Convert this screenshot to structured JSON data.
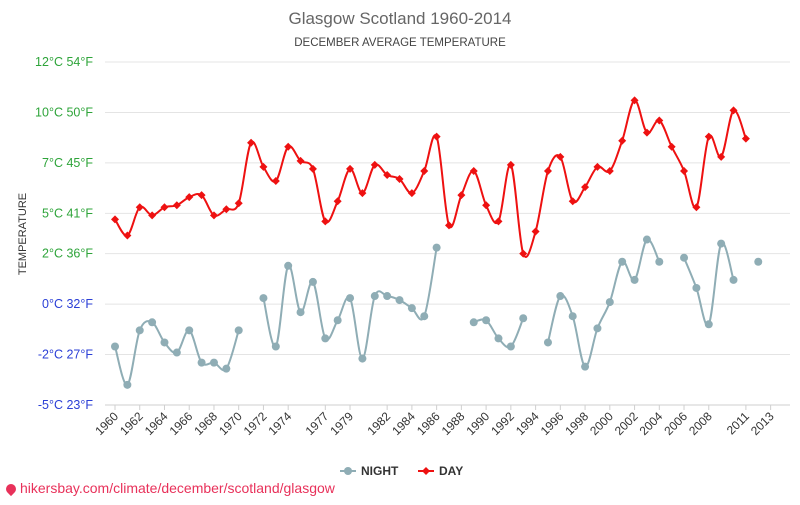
{
  "chart_data": {
    "type": "line",
    "title": "Glasgow Scotland 1960-2014",
    "subtitle": "DECEMBER AVERAGE TEMPERATURE",
    "ylabel": "TEMPERATURE",
    "xlabel": "",
    "ylim": [
      -5,
      12
    ],
    "yticks": [
      {
        "value": 12,
        "label": "12°C 54°F",
        "color": "#2ea43a"
      },
      {
        "value": 9.5,
        "label": "10°C 50°F",
        "color": "#2ea43a"
      },
      {
        "value": 7,
        "label": "7°C 45°F",
        "color": "#2ea43a"
      },
      {
        "value": 4.5,
        "label": "5°C 41°F",
        "color": "#2ea43a"
      },
      {
        "value": 2.5,
        "label": "2°C 36°F",
        "color": "#2ea43a"
      },
      {
        "value": 0,
        "label": "0°C 32°F",
        "color": "#2b3fd6"
      },
      {
        "value": -2.5,
        "label": "-2°C 27°F",
        "color": "#2b3fd6"
      },
      {
        "value": -5,
        "label": "-5°C 23°F",
        "color": "#2b3fd6"
      }
    ],
    "x": [
      1960,
      1961,
      1962,
      1963,
      1964,
      1965,
      1966,
      1967,
      1968,
      1969,
      1970,
      1971,
      1972,
      1973,
      1974,
      1975,
      1976,
      1977,
      1978,
      1979,
      1980,
      1981,
      1982,
      1983,
      1984,
      1985,
      1986,
      1987,
      1988,
      1989,
      1990,
      1991,
      1992,
      1993,
      1994,
      1995,
      1996,
      1997,
      1998,
      1999,
      2000,
      2001,
      2002,
      2003,
      2004,
      2005,
      2006,
      2007,
      2008,
      2009,
      2010,
      2011,
      2012,
      2013,
      2014
    ],
    "xtick_labels": [
      "1960",
      "1962",
      "1964",
      "1966",
      "1968",
      "1970",
      "1972",
      "1974",
      "1977",
      "1979",
      "1982",
      "1984",
      "1986",
      "1988",
      "1990",
      "1992",
      "1994",
      "1996",
      "1998",
      "2000",
      "2002",
      "2004",
      "2006",
      "2008",
      "2011",
      "2013"
    ],
    "series": [
      {
        "name": "NIGHT",
        "color": "#8fadb5",
        "values": [
          -2.1,
          -4.0,
          -1.3,
          -0.9,
          -1.9,
          -2.4,
          -1.3,
          -2.9,
          -2.9,
          -3.2,
          -1.3,
          null,
          0.3,
          -2.1,
          1.9,
          -0.4,
          1.1,
          -1.7,
          -0.8,
          0.3,
          -2.7,
          0.4,
          0.4,
          0.2,
          -0.2,
          -0.6,
          2.8,
          null,
          null,
          -0.9,
          -0.8,
          -1.7,
          -2.1,
          -0.7,
          null,
          -1.9,
          0.4,
          -0.6,
          -3.1,
          -1.2,
          0.1,
          2.1,
          1.2,
          3.2,
          2.1,
          null,
          2.3,
          0.8,
          -1.0,
          3.0,
          1.2,
          null,
          2.1,
          null,
          null
        ]
      },
      {
        "name": "DAY",
        "color": "#ee1111",
        "values": [
          4.2,
          3.4,
          4.8,
          4.4,
          4.8,
          4.9,
          5.3,
          5.4,
          4.4,
          4.7,
          5.0,
          8.0,
          6.8,
          6.1,
          7.8,
          7.1,
          6.7,
          4.1,
          5.1,
          6.7,
          5.5,
          6.9,
          6.4,
          6.2,
          5.5,
          6.6,
          8.3,
          3.9,
          5.4,
          6.6,
          4.9,
          4.1,
          6.9,
          2.5,
          3.6,
          6.6,
          7.3,
          5.1,
          5.8,
          6.8,
          6.6,
          8.1,
          10.1,
          8.5,
          9.1,
          7.8,
          6.6,
          4.8,
          8.3,
          7.3,
          9.6,
          8.2,
          null,
          null,
          null
        ]
      }
    ],
    "legend": {
      "position": "bottom-center",
      "items": [
        "NIGHT",
        "DAY"
      ]
    },
    "grid": true
  },
  "footer": {
    "source": "hikersbay.com/climate/december/scotland/glasgow"
  }
}
